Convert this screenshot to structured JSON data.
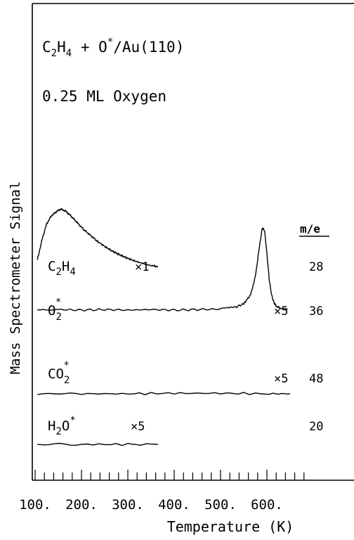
{
  "chart_data": {
    "type": "line",
    "title": "C2H4 + O*/Au(110)",
    "subtitle": "0.25 ML Oxygen",
    "xlabel": "Temperature (K)",
    "ylabel": "Mass Spectrometer Signal",
    "xlim": [
      100,
      680
    ],
    "x_ticks": [
      100,
      200,
      300,
      400,
      500,
      600
    ],
    "x_tick_labels": [
      "100.",
      "200.",
      "300.",
      "400.",
      "500.",
      "600."
    ],
    "me_header": "m/e",
    "series": [
      {
        "name": "C2H4",
        "m_e": "28",
        "multiplier": "×1",
        "x": [
          105,
          115,
          125,
          135,
          145,
          155,
          165,
          175,
          185,
          195,
          205,
          215,
          225,
          235,
          250,
          265,
          280,
          295,
          310,
          325,
          340,
          355,
          365
        ],
        "y": [
          0.52,
          1.55,
          2.35,
          2.75,
          2.95,
          3.1,
          3.0,
          2.8,
          2.55,
          2.3,
          2.05,
          1.85,
          1.65,
          1.45,
          1.2,
          0.98,
          0.8,
          0.64,
          0.5,
          0.38,
          0.28,
          0.2,
          0.18
        ]
      },
      {
        "name": "O2*",
        "m_e": "36",
        "multiplier": "×5",
        "x": [
          105,
          150,
          200,
          250,
          300,
          350,
          400,
          450,
          500,
          530,
          550,
          565,
          575,
          585,
          590,
          595,
          600,
          605,
          610,
          615,
          620,
          630,
          645
        ],
        "y": [
          0,
          0.01,
          0,
          0.01,
          0,
          0.01,
          0,
          0.01,
          0.02,
          0.05,
          0.12,
          0.3,
          0.65,
          1.3,
          1.6,
          1.55,
          1.1,
          0.6,
          0.3,
          0.15,
          0.08,
          0.03,
          0.02
        ]
      },
      {
        "name": "CO2*",
        "m_e": "48",
        "multiplier": "×5",
        "x": [
          105,
          200,
          300,
          400,
          500,
          600,
          650
        ],
        "y": [
          0,
          0,
          0,
          0.01,
          0.01,
          0,
          0
        ]
      },
      {
        "name": "H2O*",
        "m_e": "20",
        "multiplier": "×5",
        "x": [
          105,
          200,
          300,
          365
        ],
        "y": [
          0,
          0,
          0,
          0
        ]
      }
    ]
  }
}
